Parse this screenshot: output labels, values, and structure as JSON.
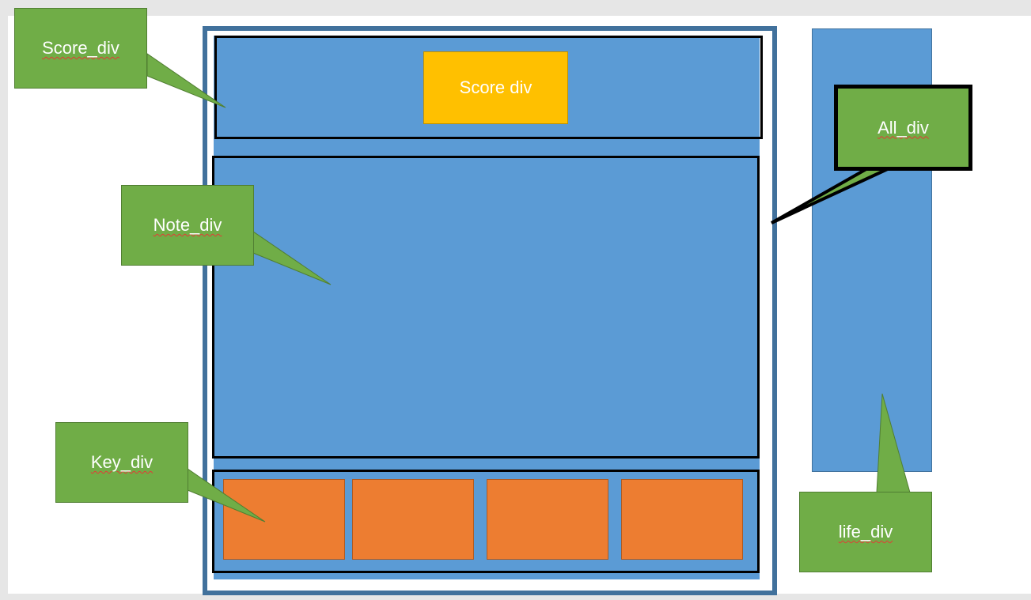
{
  "colors": {
    "container_blue": "#5b9bd5",
    "outer_frame": "#41719c",
    "score_box": "#ffc000",
    "key_box": "#ed7d31",
    "callout_green": "#70ad47",
    "outline_black": "#000000",
    "text_white": "#ffffff"
  },
  "diagram": {
    "score_box_text": "Score div",
    "callouts": {
      "score": "Score_div",
      "note": "Note_div",
      "key": "Key_div",
      "all": "All_div",
      "life": "life_div"
    },
    "key_count": 4
  }
}
